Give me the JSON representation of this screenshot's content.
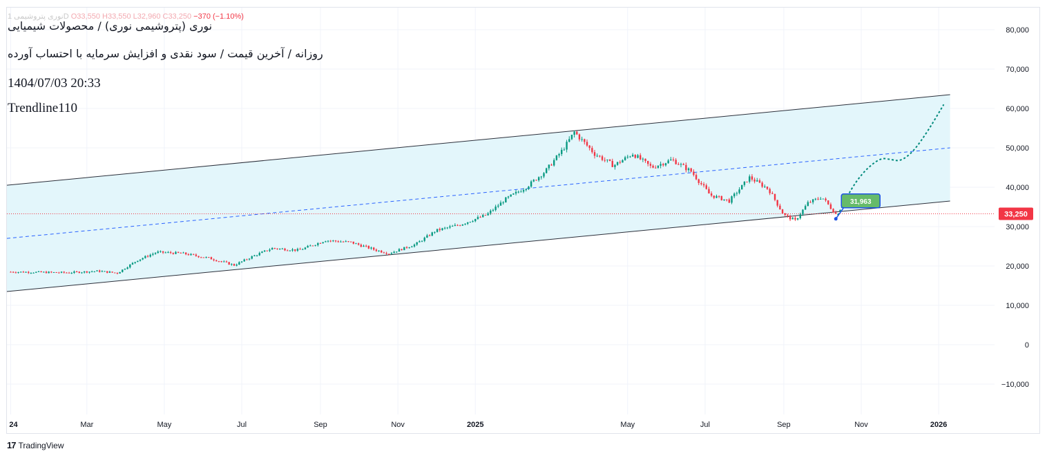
{
  "header": {
    "ohlc_symbol": "نوری پتروشیمی 1D",
    "o": "O33,550",
    "h": "H33,550",
    "l": "L32,960",
    "c": "C33,250",
    "change": "−370 (−1.10%)",
    "symbol_title": "نوری (پتروشیمی نوری) / محصولات شیمیایی",
    "description": "روزانه / آخرین قیمت / سود نقدی و افزایش سرمایه با احتساب آورده",
    "datetime": "1404/07/03 20:33",
    "tag": "Trendline110"
  },
  "branding": {
    "logo_text": "TradingView",
    "logo_mark": "17"
  },
  "colors": {
    "up": "#089981",
    "down": "#f23645",
    "channel_fill": "#e3f6fb",
    "channel_line": "#2a2e39",
    "midline": "#2962ff",
    "projection": "#00897b",
    "price_tag": "#f23645",
    "callout": "#66bb6a",
    "callout_border": "#1e53e5"
  },
  "chart_data": {
    "type": "candlestick",
    "ylim": [
      -17000,
      88000
    ],
    "yticks": [
      "80,000",
      "70,000",
      "60,000",
      "50,000",
      "40,000",
      "30,000",
      "20,000",
      "10,000",
      "0",
      "−10,000"
    ],
    "ytick_values": [
      80000,
      70000,
      60000,
      50000,
      40000,
      30000,
      20000,
      10000,
      0,
      -10000
    ],
    "xticks": [
      {
        "label": "24",
        "bold": true,
        "date": "2024-01-01"
      },
      {
        "label": "Mar",
        "bold": false,
        "date": "2024-03-01"
      },
      {
        "label": "May",
        "bold": false,
        "date": "2024-05-01"
      },
      {
        "label": "Jul",
        "bold": false,
        "date": "2024-07-01"
      },
      {
        "label": "Sep",
        "bold": false,
        "date": "2024-09-01"
      },
      {
        "label": "Nov",
        "bold": false,
        "date": "2024-11-01"
      },
      {
        "label": "2025",
        "bold": true,
        "date": "2025-01-01"
      },
      {
        "label": "May",
        "bold": false,
        "date": "2025-05-01"
      },
      {
        "label": "Jul",
        "bold": false,
        "date": "2025-07-01"
      },
      {
        "label": "Sep",
        "bold": false,
        "date": "2025-09-01"
      },
      {
        "label": "Nov",
        "bold": false,
        "date": "2025-11-01"
      },
      {
        "label": "2026",
        "bold": true,
        "date": "2026-01-01"
      }
    ],
    "price_path": [
      [
        "2024-01-01",
        18500
      ],
      [
        "2024-02-15",
        18300
      ],
      [
        "2024-03-10",
        18700
      ],
      [
        "2024-03-25",
        18200
      ],
      [
        "2024-04-10",
        21500
      ],
      [
        "2024-04-25",
        23500
      ],
      [
        "2024-05-15",
        23200
      ],
      [
        "2024-06-05",
        22000
      ],
      [
        "2024-06-25",
        20200
      ],
      [
        "2024-07-10",
        22500
      ],
      [
        "2024-07-25",
        24500
      ],
      [
        "2024-08-15",
        24000
      ],
      [
        "2024-09-05",
        26500
      ],
      [
        "2024-09-25",
        26000
      ],
      [
        "2024-10-15",
        24000
      ],
      [
        "2024-10-25",
        23200
      ],
      [
        "2024-11-15",
        25500
      ],
      [
        "2024-12-01",
        29000
      ],
      [
        "2024-12-20",
        30500
      ],
      [
        "2025-01-10",
        33000
      ],
      [
        "2025-01-25",
        37000
      ],
      [
        "2025-02-10",
        40000
      ],
      [
        "2025-02-25",
        44000
      ],
      [
        "2025-03-12",
        50000
      ],
      [
        "2025-03-20",
        54000
      ],
      [
        "2025-04-05",
        48500
      ],
      [
        "2025-04-20",
        45500
      ],
      [
        "2025-05-05",
        48500
      ],
      [
        "2025-05-20",
        45000
      ],
      [
        "2025-06-05",
        47000
      ],
      [
        "2025-06-20",
        44000
      ],
      [
        "2025-07-05",
        38000
      ],
      [
        "2025-07-20",
        36500
      ],
      [
        "2025-08-05",
        42500
      ],
      [
        "2025-08-20",
        39500
      ],
      [
        "2025-09-01",
        33000
      ],
      [
        "2025-09-10",
        31500
      ],
      [
        "2025-09-20",
        36000
      ],
      [
        "2025-10-01",
        37500
      ],
      [
        "2025-10-12",
        33250
      ]
    ],
    "last_price": 33250,
    "last_price_label": "33,250",
    "channel": {
      "upper": [
        [
          "2023-12-29",
          40500
        ],
        [
          "2026-01-10",
          63500
        ]
      ],
      "lower": [
        [
          "2023-12-29",
          13500
        ],
        [
          "2026-01-10",
          36500
        ]
      ],
      "mid": [
        [
          "2023-12-29",
          27000
        ],
        [
          "2026-01-10",
          50000
        ]
      ]
    },
    "projection": [
      [
        "2025-10-12",
        31963
      ],
      [
        "2025-10-28",
        42000
      ],
      [
        "2025-11-15",
        47500
      ],
      [
        "2025-11-25",
        47000
      ],
      [
        "2025-12-02",
        46600
      ],
      [
        "2025-12-12",
        49000
      ],
      [
        "2025-12-24",
        54500
      ],
      [
        "2026-01-05",
        61000
      ]
    ],
    "callout_label": "31,963",
    "callout_value": 31963
  }
}
